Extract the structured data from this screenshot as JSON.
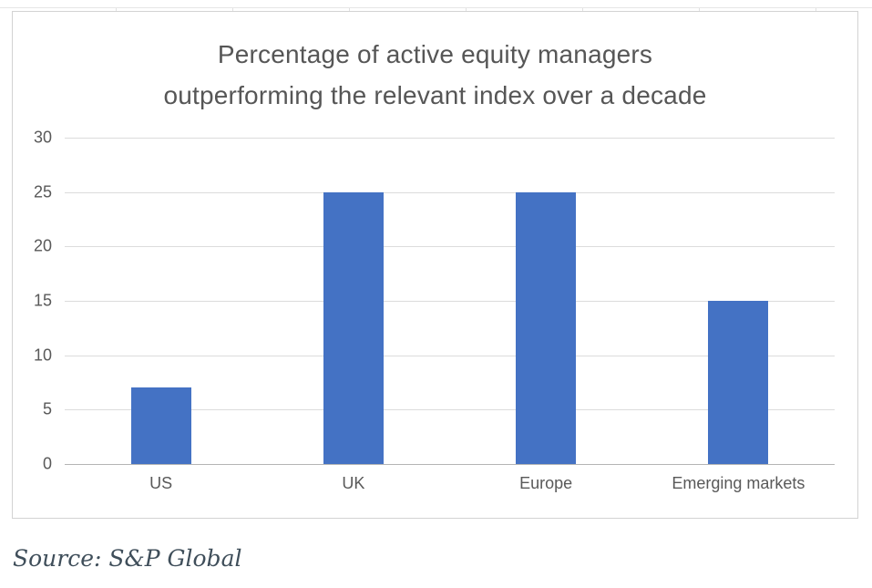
{
  "chart_data": {
    "type": "bar",
    "title": "Percentage of active equity managers outperforming the relevant index over a decade",
    "title_lines": [
      "Percentage of active equity managers",
      "outperforming the relevant index over a decade"
    ],
    "categories": [
      "US",
      "UK",
      "Europe",
      "Emerging markets"
    ],
    "values": [
      7,
      25,
      25,
      15
    ],
    "xlabel": "",
    "ylabel": "",
    "ylim": [
      0,
      30
    ],
    "yticks": [
      0,
      5,
      10,
      15,
      20,
      25,
      30
    ],
    "grid": true,
    "legend": "none",
    "bar_color": "#4472c4"
  },
  "source": {
    "text": "Source: S&P Global"
  },
  "colors": {
    "bar": "#4472c4",
    "title_text": "#565656",
    "axis_text": "#595959",
    "gridline": "#dcdcdc",
    "zero_line": "#b5b5b5",
    "frame_border": "#d3d3d3",
    "source_text": "#3f4e5a",
    "background": "#ffffff"
  }
}
